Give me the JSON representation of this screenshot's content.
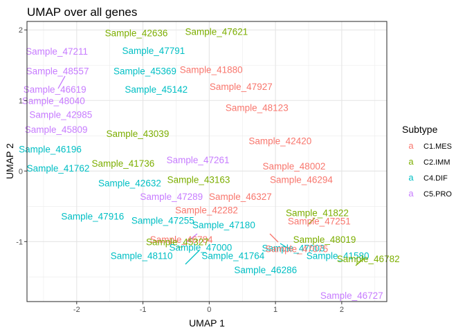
{
  "chart_data": {
    "type": "scatter",
    "title": "UMAP over all genes",
    "xlabel": "UMAP 1",
    "ylabel": "UMAP 2",
    "xlim": [
      -2.75,
      2.68
    ],
    "ylim": [
      -1.85,
      2.12
    ],
    "x_ticks": [
      -2,
      -1,
      0,
      1,
      2
    ],
    "y_ticks": [
      -1,
      0,
      1,
      2
    ],
    "x_tick_labels": [
      "-2",
      "-1",
      "0",
      "1",
      "2"
    ],
    "y_tick_labels": [
      "-1",
      "0",
      "1",
      "2"
    ],
    "grid": true,
    "legend_position": "right",
    "legend": {
      "title": "Subtype",
      "key_glyph": "a",
      "entries": [
        {
          "label": "C1.MES",
          "color": "#F8766D"
        },
        {
          "label": "C2.IMM",
          "color": "#7CAE00"
        },
        {
          "label": "C4.DIF",
          "color": "#00BFC4"
        },
        {
          "label": "C5.PRO",
          "color": "#C77CFF"
        }
      ]
    },
    "colors": {
      "C1.MES": "#F8766D",
      "C2.IMM": "#7CAE00",
      "C4.DIF": "#00BFC4",
      "C5.PRO": "#C77CFF"
    },
    "points": [
      {
        "label": "Sample_42636",
        "subtype": "C2.IMM",
        "x": -1.1,
        "y": 1.96
      },
      {
        "label": "Sample_47621",
        "subtype": "C2.IMM",
        "x": 0.11,
        "y": 1.98
      },
      {
        "label": "Sample_47211",
        "subtype": "C5.PRO",
        "x": -2.3,
        "y": 1.7
      },
      {
        "label": "Sample_47791",
        "subtype": "C4.DIF",
        "x": -0.84,
        "y": 1.71
      },
      {
        "label": "Sample_48557",
        "subtype": "C5.PRO",
        "x": -2.29,
        "y": 1.42
      },
      {
        "label": "Sample_45369",
        "subtype": "C4.DIF",
        "x": -0.97,
        "y": 1.42
      },
      {
        "label": "Sample_41880",
        "subtype": "C1.MES",
        "x": 0.03,
        "y": 1.44
      },
      {
        "label": "Sample_46619",
        "subtype": "C5.PRO",
        "x": -2.33,
        "y": 1.16
      },
      {
        "label": "Sample_45142",
        "subtype": "C4.DIF",
        "x": -0.8,
        "y": 1.16
      },
      {
        "label": "Sample_47927",
        "subtype": "C1.MES",
        "x": 0.48,
        "y": 1.2
      },
      {
        "label": "Sample_48040",
        "subtype": "C5.PRO",
        "x": -2.35,
        "y": 1.0
      },
      {
        "label": "Sample_48123",
        "subtype": "C1.MES",
        "x": 0.72,
        "y": 0.9
      },
      {
        "label": "Sample_42985",
        "subtype": "C5.PRO",
        "x": -2.24,
        "y": 0.8
      },
      {
        "label": "Sample_45809",
        "subtype": "C5.PRO",
        "x": -2.31,
        "y": 0.59
      },
      {
        "label": "Sample_43039",
        "subtype": "C2.IMM",
        "x": -1.08,
        "y": 0.53
      },
      {
        "label": "Sample_42420",
        "subtype": "C1.MES",
        "x": 1.07,
        "y": 0.43
      },
      {
        "label": "Sample_46196",
        "subtype": "C4.DIF",
        "x": -2.4,
        "y": 0.31
      },
      {
        "label": "Sample_41736",
        "subtype": "C2.IMM",
        "x": -1.3,
        "y": 0.11
      },
      {
        "label": "Sample_47261",
        "subtype": "C5.PRO",
        "x": -0.17,
        "y": 0.16
      },
      {
        "label": "Sample_48002",
        "subtype": "C1.MES",
        "x": 1.28,
        "y": 0.07
      },
      {
        "label": "Sample_41762",
        "subtype": "C4.DIF",
        "x": -2.28,
        "y": 0.04
      },
      {
        "label": "Sample_46294",
        "subtype": "C1.MES",
        "x": 1.39,
        "y": -0.12
      },
      {
        "label": "Sample_42632",
        "subtype": "C4.DIF",
        "x": -1.2,
        "y": -0.17
      },
      {
        "label": "Sample_43163",
        "subtype": "C2.IMM",
        "x": -0.16,
        "y": -0.12
      },
      {
        "label": "Sample_47289",
        "subtype": "C5.PRO",
        "x": -0.57,
        "y": -0.36
      },
      {
        "label": "Sample_46327",
        "subtype": "C1.MES",
        "x": 0.47,
        "y": -0.36
      },
      {
        "label": "Sample_42282",
        "subtype": "C1.MES",
        "x": -0.04,
        "y": -0.55
      },
      {
        "label": "Sample_41822",
        "subtype": "C2.IMM",
        "x": 1.63,
        "y": -0.59
      },
      {
        "label": "Sample_47916",
        "subtype": "C4.DIF",
        "x": -1.76,
        "y": -0.64
      },
      {
        "label": "Sample_47255",
        "subtype": "C4.DIF",
        "x": -0.7,
        "y": -0.7
      },
      {
        "label": "Sample_47251",
        "subtype": "C1.MES",
        "x": 1.66,
        "y": -0.71
      },
      {
        "label": "Sample_47180",
        "subtype": "C4.DIF",
        "x": 0.22,
        "y": -0.76
      },
      {
        "label": "Sample_46784",
        "subtype": "C1.MES",
        "x": -0.42,
        "y": -0.97
      },
      {
        "label": "Sample_45327",
        "subtype": "C2.IMM",
        "x": -0.48,
        "y": -1.0
      },
      {
        "label": "Sample_47003",
        "subtype": "C4.DIF",
        "x": 1.27,
        "y": -1.09
      },
      {
        "label": "Sample_47075",
        "subtype": "C1.MES",
        "x": 1.32,
        "y": -1.1
      },
      {
        "label": "Sample_48019",
        "subtype": "C2.IMM",
        "x": 1.74,
        "y": -0.97
      },
      {
        "label": "Sample_48110",
        "subtype": "C4.DIF",
        "x": -1.02,
        "y": -1.2
      },
      {
        "label": "Sample_41764",
        "subtype": "C4.DIF",
        "x": 0.36,
        "y": -1.2
      },
      {
        "label": "Sample_41580",
        "subtype": "C4.DIF",
        "x": 1.94,
        "y": -1.2
      },
      {
        "label": "Sample_47000",
        "subtype": "C4.DIF",
        "x": -0.13,
        "y": -1.08
      },
      {
        "label": "Sample_46286",
        "subtype": "C4.DIF",
        "x": 0.85,
        "y": -1.4
      },
      {
        "label": "Sample_46782",
        "subtype": "C2.IMM",
        "x": 2.4,
        "y": -1.24
      },
      {
        "label": "Sample_46727",
        "subtype": "C5.PRO",
        "x": 2.15,
        "y": -1.76
      }
    ]
  }
}
